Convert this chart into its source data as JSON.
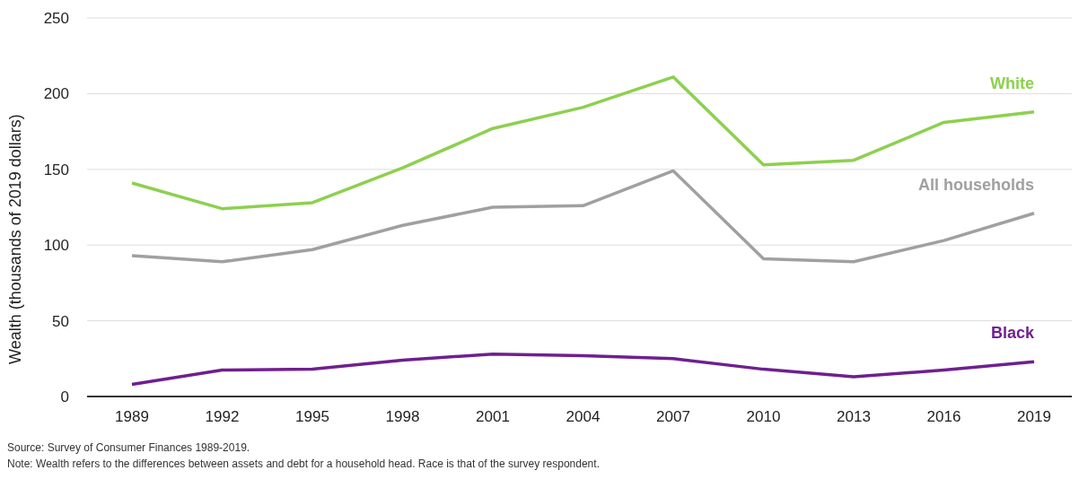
{
  "chart_data": {
    "type": "line",
    "ylabel": "Wealth  (thousands of 2019 dollars)",
    "categories": [
      "1989",
      "1992",
      "1995",
      "1998",
      "2001",
      "2004",
      "2007",
      "2010",
      "2013",
      "2016",
      "2019"
    ],
    "series": [
      {
        "name": "White",
        "color": "#8dd04f",
        "values": [
          141,
          124,
          128,
          151,
          177,
          191,
          211,
          153,
          156,
          181,
          188
        ]
      },
      {
        "name": "All households",
        "color": "#a0a0a0",
        "values": [
          93,
          89,
          97,
          113,
          125,
          126,
          149,
          91,
          89,
          103,
          121
        ]
      },
      {
        "name": "Black",
        "color": "#6f1f8f",
        "values": [
          8,
          17.5,
          18,
          24,
          28,
          27,
          25,
          18,
          13,
          17.5,
          23
        ]
      }
    ],
    "ylim": [
      0,
      250
    ],
    "yticks": [
      0,
      50,
      100,
      150,
      200,
      250
    ],
    "grid": "y",
    "legend": false,
    "marker": "none",
    "line_style": "solid",
    "annotations": [
      "Source: Survey of Consumer Finances 1989-2019.",
      "Note: Wealth refers to the differences between assets and debt for a household head. Race is that of the survey respondent."
    ]
  }
}
